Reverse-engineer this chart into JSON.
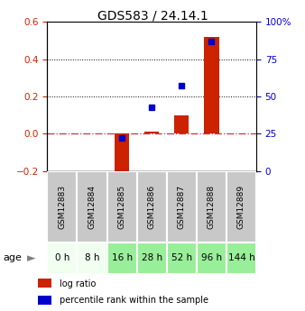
{
  "title": "GDS583 / 24.14.1",
  "samples": [
    "GSM12883",
    "GSM12884",
    "GSM12885",
    "GSM12886",
    "GSM12887",
    "GSM12888",
    "GSM12889"
  ],
  "ages": [
    "0 h",
    "8 h",
    "16 h",
    "28 h",
    "52 h",
    "96 h",
    "144 h"
  ],
  "log_ratio": [
    0.0,
    0.0,
    -0.23,
    0.01,
    0.1,
    0.52,
    0.0
  ],
  "percentile": [
    0.0,
    0.0,
    22.0,
    43.0,
    57.0,
    87.0,
    0.0
  ],
  "ylim_left": [
    -0.2,
    0.6
  ],
  "ylim_right": [
    0,
    100
  ],
  "yticks_left": [
    -0.2,
    0.0,
    0.2,
    0.4,
    0.6
  ],
  "yticks_right": [
    0,
    25,
    50,
    75,
    100
  ],
  "yticklabels_right": [
    "0",
    "25",
    "50",
    "75",
    "100%"
  ],
  "bar_color": "#cc2200",
  "scatter_color": "#0000cc",
  "bg_color_gsm": "#c8c8c8",
  "age_colors": [
    "#f0fff0",
    "#f0fff0",
    "#99ee99",
    "#99ee99",
    "#99ee99",
    "#99ee99",
    "#99ee99"
  ],
  "zero_line_color": "#cc3333",
  "title_fontsize": 10,
  "tick_fontsize": 7.5,
  "sample_fontsize": 6.5,
  "age_fontsize": 7.5,
  "legend_fontsize": 7
}
